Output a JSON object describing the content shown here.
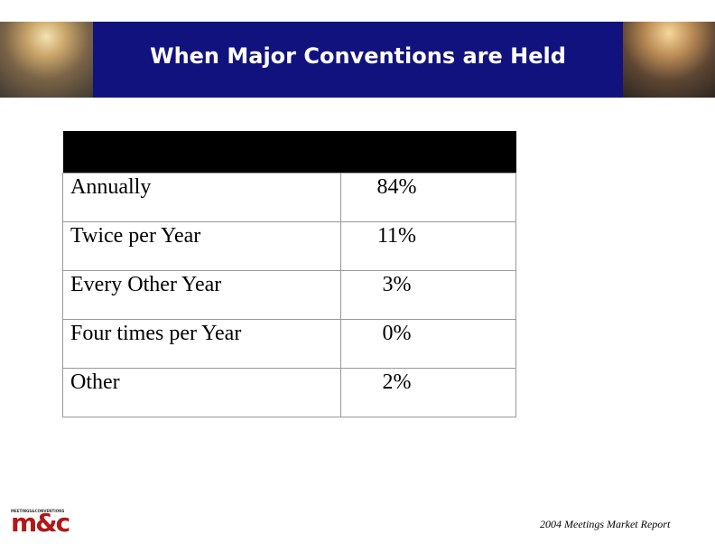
{
  "header": {
    "title": "When Major Conventions are Held"
  },
  "table": {
    "rows": [
      [
        "Annually",
        "84%"
      ],
      [
        "Twice per Year",
        "11%"
      ],
      [
        "Every Other Year",
        "3%"
      ],
      [
        "Four times per Year",
        "0%"
      ],
      [
        "Other",
        "2%"
      ]
    ]
  },
  "footer": {
    "logo": "m&c",
    "logo_caption": "MEETINGS&CONVENTIONS",
    "source": "2004 Meetings Market Report"
  }
}
